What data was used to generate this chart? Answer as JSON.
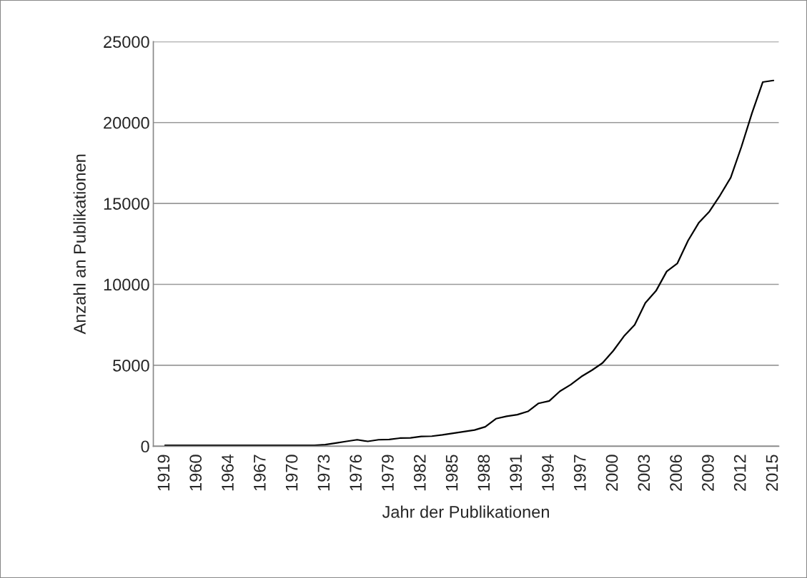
{
  "chart_data": {
    "type": "line",
    "xlabel": "Jahr der Publikationen",
    "ylabel": "Anzahl an Publikationen",
    "categories": [
      "1919",
      null,
      null,
      "1960",
      null,
      null,
      "1964",
      null,
      null,
      "1967",
      null,
      null,
      "1970",
      null,
      null,
      "1973",
      null,
      null,
      "1976",
      null,
      null,
      "1979",
      null,
      null,
      "1982",
      null,
      null,
      "1985",
      null,
      null,
      "1988",
      null,
      null,
      "1991",
      null,
      null,
      "1994",
      null,
      null,
      "1997",
      null,
      null,
      "2000",
      null,
      null,
      "2003",
      null,
      null,
      "2006",
      null,
      null,
      "2009",
      null,
      null,
      "2012",
      null,
      null,
      "2015"
    ],
    "series": [
      {
        "color": "#000000",
        "values": [
          50,
          50,
          50,
          50,
          50,
          50,
          50,
          50,
          50,
          50,
          50,
          50,
          50,
          50,
          50,
          100,
          200,
          300,
          400,
          300,
          400,
          420,
          500,
          520,
          600,
          620,
          700,
          800,
          900,
          1000,
          1200,
          1700,
          1850,
          1950,
          2150,
          2650,
          2800,
          3400,
          3800,
          4300,
          4700,
          5150,
          5900,
          6800,
          7500,
          8850,
          9600,
          10800,
          11300,
          12700,
          13800,
          14500,
          15500,
          16600,
          18500,
          20600,
          22500,
          22600
        ]
      }
    ],
    "ylim": [
      0,
      25000
    ],
    "yticks": [
      0,
      5000,
      10000,
      15000,
      20000,
      25000
    ],
    "grid": "y",
    "legend": false,
    "marker": "none",
    "line_style": "solid"
  }
}
